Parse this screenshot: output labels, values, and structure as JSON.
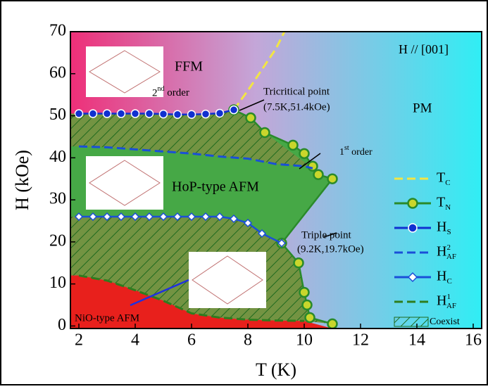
{
  "chart_data": {
    "type": "line",
    "x_label": "T (K)",
    "y_label": "H (kOe)",
    "xlim": [
      1.7,
      16.3
    ],
    "ylim": [
      -0.6,
      70
    ],
    "xticks": [
      2,
      4,
      6,
      8,
      10,
      12,
      14,
      16
    ],
    "yticks": [
      0,
      10,
      20,
      30,
      40,
      50,
      60,
      70
    ],
    "series": [
      {
        "name": "T",
        "name_sub": "C",
        "color": "#f2e544",
        "dash": true,
        "marker": "none",
        "x": [
          7.5,
          8.0,
          8.5,
          9.0,
          9.3
        ],
        "values": [
          51.4,
          56,
          61,
          66,
          70
        ]
      },
      {
        "name": "T",
        "name_sub": "N",
        "color": "#2a8a2a",
        "dash": false,
        "marker": "circle",
        "x": [
          7.5,
          8.1,
          8.6,
          9.6,
          10.0,
          10.3,
          10.5,
          11.0,
          9.2,
          9.8,
          10.0,
          10.1,
          10.2,
          11.0
        ],
        "values": [
          51.4,
          49.5,
          46,
          43,
          41,
          38,
          36,
          35,
          19.7,
          15,
          8,
          5,
          2,
          0.5
        ]
      },
      {
        "name": "H",
        "name_sub": "S",
        "color": "#1030d0",
        "dash": false,
        "marker": "half",
        "x": [
          2.0,
          2.5,
          3.0,
          3.5,
          4.0,
          4.5,
          5.0,
          5.5,
          6.0,
          6.5,
          7.0,
          7.5
        ],
        "values": [
          50.5,
          50.5,
          50.5,
          50.5,
          50.5,
          50.5,
          50.4,
          50.3,
          50.3,
          50.4,
          50.6,
          51.4
        ]
      },
      {
        "name": "H",
        "name_sup": "2",
        "name_sub": "AF",
        "color": "#1a4fd8",
        "dash": true,
        "marker": "none",
        "x": [
          2.0,
          3.0,
          4.0,
          5.0,
          6.0,
          7.0,
          8.0,
          9.0,
          10.0,
          10.3
        ],
        "values": [
          42.7,
          42.5,
          42,
          41.5,
          41,
          40.3,
          39.8,
          38.5,
          38,
          37.5
        ]
      },
      {
        "name": "H",
        "name_sub": "C",
        "color": "#1a4fd8",
        "dash": false,
        "marker": "diamond",
        "x": [
          2.0,
          2.5,
          3.0,
          3.5,
          4.0,
          4.5,
          5.0,
          5.5,
          6.0,
          6.5,
          7.0,
          7.5,
          8.0,
          8.5,
          9.2
        ],
        "values": [
          26,
          26,
          26,
          26,
          26,
          26,
          26,
          26,
          26,
          26,
          26,
          25.5,
          24.5,
          22,
          19.7
        ]
      },
      {
        "name": "H",
        "name_sup": "1",
        "name_sub": "AF",
        "color": "#2e7d1e",
        "dash": true,
        "marker": "none",
        "x": [
          2.0,
          3.0,
          4.0,
          5.0,
          6.0,
          7.0,
          8.0,
          9.0,
          10.0
        ],
        "values": [
          12,
          10.8,
          8.5,
          6,
          3,
          2,
          1.5,
          1.3,
          1.2
        ]
      }
    ],
    "coexist_label": "Coexist",
    "annotations": [
      {
        "text": "FFM"
      },
      {
        "text": "H // [001]"
      },
      {
        "text": "PM"
      },
      {
        "text": "2",
        "sup": "nd",
        "after": " order"
      },
      {
        "text": "Tricritical point"
      },
      {
        "text": "(7.5K,51.4kOe)"
      },
      {
        "text": "1",
        "sup": "st",
        "after": " order"
      },
      {
        "text": "HoP-type AFM"
      },
      {
        "text": "Triple point"
      },
      {
        "text": "(9.2K,19.7kOe)"
      },
      {
        "text": "NiO-type AFM"
      }
    ]
  }
}
